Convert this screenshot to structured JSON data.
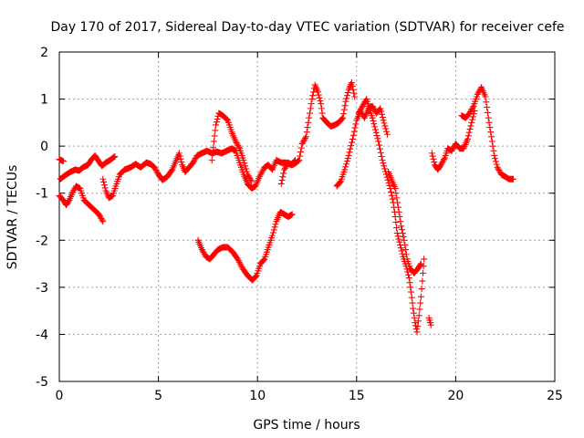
{
  "chart_data": {
    "type": "scatter",
    "title": "Day 170 of 2017, Sidereal Day-to-day VTEC variation (SDTVAR) for receiver cefe",
    "xlabel": "GPS time / hours",
    "ylabel": "SDTVAR / TECUs",
    "xlim": [
      0,
      25
    ],
    "ylim": [
      -5,
      2
    ],
    "xticks": [
      0,
      5,
      10,
      15,
      20,
      25
    ],
    "yticks": [
      -5,
      -4,
      -3,
      -2,
      -1,
      0,
      1,
      2
    ],
    "grid": true,
    "marker": "+",
    "color": "#ff0000",
    "segments": [
      [
        [
          0.0,
          -0.28
        ],
        [
          0.2,
          -0.32
        ]
      ],
      [
        [
          0.0,
          -1.05
        ],
        [
          0.2,
          -1.15
        ],
        [
          0.35,
          -1.25
        ],
        [
          0.5,
          -1.15
        ],
        [
          0.65,
          -1.0
        ],
        [
          0.85,
          -0.85
        ],
        [
          1.05,
          -0.9
        ],
        [
          1.25,
          -1.15
        ],
        [
          1.5,
          -1.25
        ],
        [
          1.75,
          -1.35
        ],
        [
          2.0,
          -1.45
        ],
        [
          2.2,
          -1.6
        ]
      ],
      [
        [
          0.05,
          -0.7
        ],
        [
          0.3,
          -0.62
        ],
        [
          0.55,
          -0.55
        ],
        [
          0.8,
          -0.5
        ],
        [
          1.0,
          -0.52
        ],
        [
          1.2,
          -0.45
        ],
        [
          1.45,
          -0.4
        ],
        [
          1.6,
          -0.3
        ],
        [
          1.8,
          -0.2
        ],
        [
          1.95,
          -0.3
        ],
        [
          2.15,
          -0.42
        ],
        [
          2.35,
          -0.35
        ],
        [
          2.55,
          -0.3
        ],
        [
          2.8,
          -0.22
        ]
      ],
      [
        [
          2.2,
          -0.7
        ],
        [
          2.35,
          -0.95
        ],
        [
          2.5,
          -1.1
        ],
        [
          2.7,
          -1.05
        ],
        [
          2.85,
          -0.85
        ],
        [
          3.05,
          -0.6
        ],
        [
          3.3,
          -0.5
        ],
        [
          3.6,
          -0.45
        ],
        [
          3.85,
          -0.38
        ],
        [
          4.1,
          -0.45
        ],
        [
          4.4,
          -0.35
        ],
        [
          4.6,
          -0.38
        ],
        [
          4.8,
          -0.45
        ],
        [
          5.0,
          -0.6
        ],
        [
          5.2,
          -0.72
        ],
        [
          5.45,
          -0.65
        ],
        [
          5.7,
          -0.5
        ],
        [
          5.9,
          -0.3
        ],
        [
          6.05,
          -0.15
        ],
        [
          6.2,
          -0.4
        ],
        [
          6.35,
          -0.55
        ],
        [
          6.55,
          -0.45
        ],
        [
          6.75,
          -0.35
        ],
        [
          6.95,
          -0.2
        ],
        [
          7.2,
          -0.15
        ],
        [
          7.45,
          -0.1
        ],
        [
          7.7,
          -0.15
        ],
        [
          7.95,
          -0.12
        ],
        [
          8.2,
          -0.15
        ],
        [
          8.45,
          -0.1
        ],
        [
          8.7,
          -0.05
        ],
        [
          8.9,
          -0.1
        ],
        [
          9.1,
          -0.35
        ],
        [
          9.3,
          -0.6
        ],
        [
          9.5,
          -0.8
        ],
        [
          9.7,
          -0.9
        ],
        [
          9.9,
          -0.85
        ],
        [
          10.1,
          -0.65
        ],
        [
          10.35,
          -0.45
        ],
        [
          10.55,
          -0.4
        ],
        [
          10.75,
          -0.5
        ],
        [
          10.95,
          -0.3
        ],
        [
          11.2,
          -0.35
        ],
        [
          11.45,
          -0.35
        ],
        [
          11.7,
          -0.4
        ],
        [
          11.9,
          -0.3
        ]
      ],
      [
        [
          7.7,
          -0.3
        ],
        [
          7.8,
          0.1
        ],
        [
          7.9,
          0.45
        ],
        [
          8.05,
          0.7
        ],
        [
          8.25,
          0.65
        ],
        [
          8.5,
          0.55
        ],
        [
          8.7,
          0.3
        ],
        [
          8.9,
          0.1
        ],
        [
          9.1,
          -0.05
        ],
        [
          9.3,
          -0.3
        ],
        [
          9.5,
          -0.6
        ],
        [
          9.7,
          -0.75
        ]
      ],
      [
        [
          11.2,
          -0.8
        ],
        [
          11.35,
          -0.5
        ],
        [
          11.55,
          -0.35
        ],
        [
          11.75,
          -0.4
        ],
        [
          11.95,
          -0.35
        ],
        [
          12.1,
          -0.3
        ],
        [
          12.25,
          0.05
        ],
        [
          12.45,
          0.2
        ],
        [
          12.6,
          0.6
        ],
        [
          12.75,
          1.0
        ],
        [
          12.9,
          1.3
        ],
        [
          13.05,
          1.15
        ],
        [
          13.2,
          0.9
        ],
        [
          13.3,
          0.6
        ],
        [
          13.5,
          0.5
        ],
        [
          13.7,
          0.42
        ],
        [
          13.9,
          0.45
        ],
        [
          14.1,
          0.5
        ],
        [
          14.3,
          0.6
        ],
        [
          14.45,
          0.95
        ],
        [
          14.6,
          1.2
        ],
        [
          14.75,
          1.35
        ],
        [
          14.9,
          1.05
        ]
      ],
      [
        [
          14.0,
          -0.85
        ],
        [
          14.2,
          -0.75
        ],
        [
          14.4,
          -0.5
        ],
        [
          14.6,
          -0.2
        ],
        [
          14.8,
          0.15
        ],
        [
          15.0,
          0.55
        ],
        [
          15.2,
          0.75
        ],
        [
          15.4,
          0.6
        ],
        [
          15.6,
          0.8
        ],
        [
          15.8,
          0.85
        ],
        [
          16.0,
          0.7
        ],
        [
          16.2,
          0.8
        ],
        [
          16.35,
          0.55
        ],
        [
          16.55,
          0.25
        ]
      ],
      [
        [
          15.1,
          0.7
        ],
        [
          15.3,
          0.85
        ],
        [
          15.5,
          1.0
        ],
        [
          15.65,
          0.8
        ],
        [
          15.8,
          0.6
        ],
        [
          15.95,
          0.35
        ],
        [
          16.1,
          0.1
        ],
        [
          16.3,
          -0.3
        ],
        [
          16.5,
          -0.6
        ],
        [
          16.7,
          -0.9
        ],
        [
          16.85,
          -1.2
        ],
        [
          16.95,
          -1.5
        ],
        [
          17.05,
          -1.85
        ],
        [
          17.2,
          -2.1
        ],
        [
          17.35,
          -2.35
        ],
        [
          17.5,
          -2.55
        ],
        [
          17.65,
          -2.8
        ],
        [
          17.75,
          -3.1
        ],
        [
          17.85,
          -3.45
        ],
        [
          17.95,
          -3.75
        ],
        [
          18.05,
          -3.95
        ],
        [
          18.15,
          -3.6
        ],
        [
          18.25,
          -3.2
        ],
        [
          18.35,
          -2.7
        ],
        [
          18.4,
          -2.4
        ]
      ],
      [
        [
          16.6,
          -0.55
        ],
        [
          16.8,
          -0.75
        ],
        [
          16.95,
          -0.9
        ],
        [
          17.1,
          -1.3
        ],
        [
          17.25,
          -1.7
        ],
        [
          17.4,
          -2.0
        ],
        [
          17.55,
          -2.4
        ],
        [
          17.7,
          -2.6
        ],
        [
          17.9,
          -2.7
        ],
        [
          18.1,
          -2.6
        ],
        [
          18.25,
          -2.5
        ]
      ],
      [
        [
          18.65,
          -3.65
        ],
        [
          18.75,
          -3.8
        ]
      ],
      [
        [
          18.8,
          -0.15
        ],
        [
          18.95,
          -0.4
        ],
        [
          19.1,
          -0.5
        ],
        [
          19.25,
          -0.4
        ],
        [
          19.45,
          -0.25
        ],
        [
          19.6,
          -0.05
        ],
        [
          19.8,
          -0.1
        ],
        [
          20.0,
          0.05
        ],
        [
          20.2,
          -0.05
        ],
        [
          20.4,
          -0.05
        ],
        [
          20.6,
          0.15
        ],
        [
          20.8,
          0.5
        ],
        [
          20.95,
          0.75
        ]
      ],
      [
        [
          20.3,
          0.65
        ],
        [
          20.5,
          0.6
        ],
        [
          20.7,
          0.7
        ],
        [
          20.9,
          0.85
        ],
        [
          21.1,
          1.1
        ],
        [
          21.3,
          1.25
        ],
        [
          21.5,
          1.05
        ],
        [
          21.65,
          0.6
        ],
        [
          21.8,
          0.2
        ],
        [
          21.95,
          -0.2
        ],
        [
          22.1,
          -0.45
        ],
        [
          22.3,
          -0.6
        ],
        [
          22.5,
          -0.65
        ],
        [
          22.7,
          -0.7
        ],
        [
          22.9,
          -0.7
        ]
      ],
      [
        [
          7.0,
          -2.0
        ],
        [
          7.2,
          -2.2
        ],
        [
          7.4,
          -2.35
        ],
        [
          7.6,
          -2.4
        ],
        [
          7.8,
          -2.3
        ],
        [
          8.0,
          -2.2
        ],
        [
          8.25,
          -2.15
        ],
        [
          8.5,
          -2.15
        ],
        [
          8.75,
          -2.25
        ],
        [
          9.0,
          -2.4
        ],
        [
          9.25,
          -2.6
        ],
        [
          9.5,
          -2.75
        ],
        [
          9.75,
          -2.85
        ],
        [
          9.95,
          -2.75
        ],
        [
          10.15,
          -2.5
        ],
        [
          10.35,
          -2.4
        ],
        [
          10.55,
          -2.15
        ],
        [
          10.75,
          -1.9
        ],
        [
          10.95,
          -1.6
        ],
        [
          11.15,
          -1.4
        ],
        [
          11.35,
          -1.45
        ],
        [
          11.55,
          -1.5
        ],
        [
          11.75,
          -1.45
        ]
      ]
    ]
  }
}
